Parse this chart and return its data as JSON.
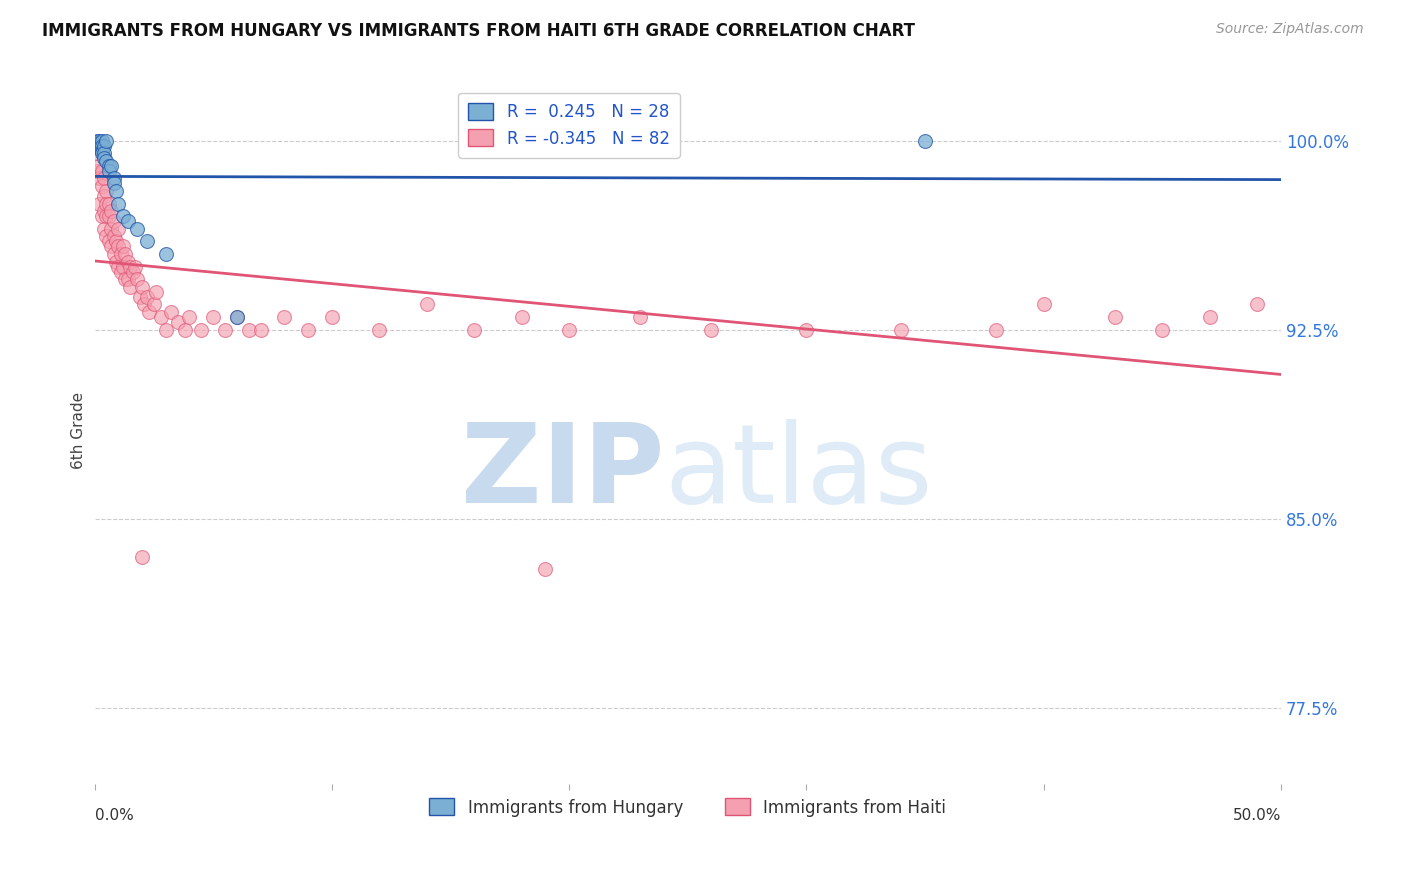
{
  "title": "IMMIGRANTS FROM HUNGARY VS IMMIGRANTS FROM HAITI 6TH GRADE CORRELATION CHART",
  "source": "Source: ZipAtlas.com",
  "ylabel": "6th Grade",
  "yticks": [
    100.0,
    92.5,
    85.0,
    77.5
  ],
  "ytick_labels": [
    "100.0%",
    "92.5%",
    "85.0%",
    "77.5%"
  ],
  "xlim": [
    0.0,
    0.5
  ],
  "ylim": [
    74.5,
    102.5
  ],
  "legend_r_hungary": "R =  0.245",
  "legend_n_hungary": "N = 28",
  "legend_r_haiti": "R = -0.345",
  "legend_n_haiti": "N = 82",
  "color_hungary": "#7BAFD4",
  "color_haiti": "#F4A0B0",
  "line_color_hungary": "#2255AA",
  "line_color_haiti": "#E05575",
  "bg_color": "#FFFFFF",
  "hungary_x": [
    0.001,
    0.001,
    0.002,
    0.002,
    0.002,
    0.003,
    0.003,
    0.003,
    0.003,
    0.004,
    0.004,
    0.004,
    0.005,
    0.005,
    0.006,
    0.006,
    0.007,
    0.008,
    0.008,
    0.009,
    0.01,
    0.012,
    0.014,
    0.018,
    0.022,
    0.03,
    0.06,
    0.35
  ],
  "hungary_y": [
    100.0,
    99.8,
    100.0,
    99.9,
    99.7,
    100.0,
    99.8,
    99.6,
    99.5,
    99.8,
    99.5,
    99.3,
    100.0,
    99.2,
    99.0,
    98.8,
    99.0,
    98.5,
    98.3,
    98.0,
    97.5,
    97.0,
    96.8,
    96.5,
    96.0,
    95.5,
    93.0,
    100.0
  ],
  "haiti_x": [
    0.001,
    0.001,
    0.002,
    0.002,
    0.002,
    0.003,
    0.003,
    0.003,
    0.004,
    0.004,
    0.004,
    0.004,
    0.005,
    0.005,
    0.005,
    0.005,
    0.006,
    0.006,
    0.006,
    0.007,
    0.007,
    0.007,
    0.008,
    0.008,
    0.008,
    0.009,
    0.009,
    0.01,
    0.01,
    0.01,
    0.011,
    0.011,
    0.012,
    0.012,
    0.013,
    0.013,
    0.014,
    0.014,
    0.015,
    0.015,
    0.016,
    0.017,
    0.018,
    0.019,
    0.02,
    0.021,
    0.022,
    0.023,
    0.025,
    0.026,
    0.028,
    0.03,
    0.032,
    0.035,
    0.038,
    0.04,
    0.045,
    0.05,
    0.055,
    0.06,
    0.065,
    0.07,
    0.08,
    0.09,
    0.1,
    0.12,
    0.14,
    0.16,
    0.18,
    0.2,
    0.23,
    0.26,
    0.3,
    0.34,
    0.38,
    0.4,
    0.43,
    0.45,
    0.47,
    0.49,
    0.02,
    0.19
  ],
  "haiti_y": [
    99.5,
    98.8,
    99.0,
    98.5,
    97.5,
    98.8,
    98.2,
    97.0,
    98.5,
    97.8,
    97.2,
    96.5,
    98.0,
    97.5,
    97.0,
    96.2,
    97.5,
    97.0,
    96.0,
    97.2,
    96.5,
    95.8,
    96.8,
    96.2,
    95.5,
    96.0,
    95.2,
    96.5,
    95.8,
    95.0,
    95.5,
    94.8,
    95.8,
    95.0,
    95.5,
    94.5,
    95.2,
    94.5,
    95.0,
    94.2,
    94.8,
    95.0,
    94.5,
    93.8,
    94.2,
    93.5,
    93.8,
    93.2,
    93.5,
    94.0,
    93.0,
    92.5,
    93.2,
    92.8,
    92.5,
    93.0,
    92.5,
    93.0,
    92.5,
    93.0,
    92.5,
    92.5,
    93.0,
    92.5,
    93.0,
    92.5,
    93.5,
    92.5,
    93.0,
    92.5,
    93.0,
    92.5,
    92.5,
    92.5,
    92.5,
    93.5,
    93.0,
    92.5,
    93.0,
    93.5,
    83.5,
    83.0
  ]
}
